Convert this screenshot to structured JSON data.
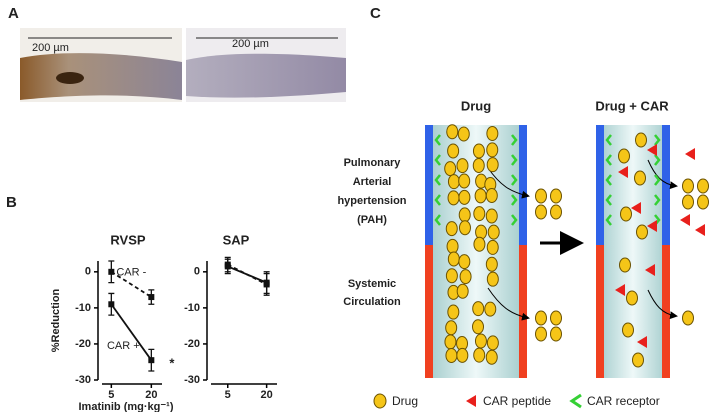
{
  "panels": {
    "a": {
      "label": "A",
      "scale_labels": [
        "200 µm",
        "200 µm"
      ]
    },
    "b": {
      "label": "B"
    },
    "c": {
      "label": "C"
    }
  },
  "chart_data": [
    {
      "type": "line",
      "title": "RVSP",
      "x": [
        5,
        20
      ],
      "xlim": [
        0,
        24
      ],
      "xticks": [
        5,
        20
      ],
      "ylim": [
        -30,
        3
      ],
      "yticks": [
        0,
        -10,
        -20,
        -30
      ],
      "y_label": "%Reduction",
      "x_label": "Imatinib (mg·kg⁻¹)",
      "annotation": "*",
      "series": [
        {
          "name": "CAR -",
          "color": "#111111",
          "dashed": true,
          "values": [
            0,
            -7
          ],
          "errors": [
            3,
            2
          ]
        },
        {
          "name": "CAR +",
          "color": "#111111",
          "dashed": false,
          "values": [
            -9,
            -24.5
          ],
          "errors": [
            3,
            3
          ]
        }
      ]
    },
    {
      "type": "line",
      "title": "SAP",
      "x": [
        5,
        20
      ],
      "xlim": [
        -3,
        24
      ],
      "xticks": [
        5,
        20
      ],
      "ylim": [
        -30,
        3
      ],
      "yticks": [
        0,
        -10,
        -20,
        -30
      ],
      "series": [
        {
          "color": "#111111",
          "dashed": true,
          "values": [
            2,
            -3.5
          ],
          "errors": [
            2,
            3
          ]
        },
        {
          "color": "#111111",
          "dashed": false,
          "values": [
            1.5,
            -3
          ],
          "errors": [
            2,
            3
          ]
        }
      ]
    }
  ],
  "diagram": {
    "titles": [
      "Drug",
      "Drug + CAR"
    ],
    "pah_label": [
      "Pulmonary",
      "Arterial",
      "hypertension",
      "(PAH)"
    ],
    "systemic_label": [
      "Systemic",
      "Circulation"
    ],
    "legend": [
      "Drug",
      "CAR peptide",
      "CAR receptor"
    ]
  }
}
